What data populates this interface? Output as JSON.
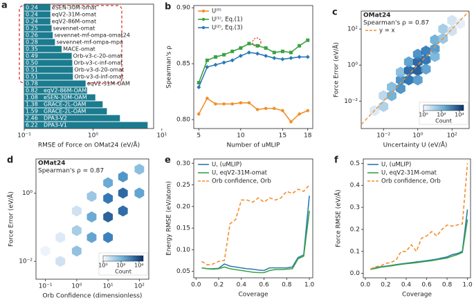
{
  "chart_data": [
    {
      "type": "barh",
      "panel_label": "a",
      "xlabel": "RMSE of Force on OMat24 (eV/Å)",
      "color": "#1b7b8f",
      "xscale": "log",
      "categories": [
        "eSEN-30M-omat",
        "eqV2-31M-omat",
        "eqV2-86M-omat",
        "sevennet-omat",
        "sevennet-mf-ompa-omat24",
        "sevennet-mf-ompa-mpa",
        "MACE-omat",
        "Orb-v3-c-20-omat",
        "Orb-v3-c-inf-omat",
        "Orb-v3-d-20-omat",
        "Orb-v3-d-inf-omat",
        "eqV2-31M-OAM",
        "eqV2-86M-OAM",
        "eSEN-30M-OAM",
        "GRACE-2L-OAM",
        "GRACE-2L-OAM",
        "DPA3-V2",
        "DPA3-V1"
      ],
      "values": [
        0.24,
        0.24,
        0.24,
        0.25,
        0.26,
        0.28,
        0.35,
        0.49,
        0.5,
        0.51,
        0.51,
        0.78,
        0.82,
        1.08,
        1.38,
        1.59,
        2.46,
        6.22
      ],
      "value_labels": [
        "0.24",
        "0.24",
        "0.24",
        "0.25",
        "0.26",
        "0.28",
        "0.35",
        "0.49",
        "0.50",
        "0.51",
        "0.51",
        "0.78",
        "0.82",
        "1.08",
        "1.38",
        "1.59",
        "2.46",
        "6.22"
      ],
      "xlim": [
        0.1,
        7.6
      ],
      "xticks": [
        {
          "value": 0.1,
          "label": "10⁻¹"
        },
        {
          "value": 1,
          "label": "10⁰"
        },
        {
          "value": 10,
          "label": "10¹"
        }
      ]
    },
    {
      "type": "line",
      "panel_label": "b",
      "xlabel": "Number of uMLIP",
      "ylabel": "Spearman's ρ",
      "legend": "upper left",
      "x": [
        5,
        6,
        7,
        8,
        9,
        10,
        11,
        12,
        13,
        14,
        15,
        16,
        17,
        18
      ],
      "series": [
        {
          "name": "U⁽⁰⁾",
          "color": "#f28e2b",
          "marker": "circle",
          "values": [
            0.805,
            0.819,
            0.814,
            0.814,
            0.814,
            0.815,
            0.815,
            0.809,
            0.81,
            0.81,
            0.808,
            0.798,
            0.805,
            0.808
          ]
        },
        {
          "name": "U⁽¹⁾, Eq.(1)",
          "color": "#3aa241",
          "marker": "square",
          "values": [
            0.833,
            0.853,
            0.856,
            0.858,
            0.861,
            0.864,
            0.868,
            0.866,
            0.864,
            0.86,
            0.861,
            0.86,
            0.866,
            0.871
          ]
        },
        {
          "name": "U⁽²⁾, Eq.(3)",
          "color": "#2a78b5",
          "marker": "diamond",
          "values": [
            0.829,
            0.847,
            0.849,
            0.851,
            0.853,
            0.857,
            0.86,
            0.859,
            0.857,
            0.855,
            0.854,
            0.855,
            0.856,
            0.856
          ]
        }
      ],
      "xlim": [
        4.4,
        18.6
      ],
      "xticks": [
        5,
        10,
        15,
        18
      ],
      "ylim": [
        0.792,
        0.902
      ],
      "yticks": [
        {
          "value": 0.8,
          "label": "0.80"
        },
        0.85,
        {
          "value": 0.9,
          "label": "0.90"
        }
      ]
    },
    {
      "type": "hexbin",
      "panel_label": "c",
      "xlabel": "Uncertainty U (eV/Å)",
      "ylabel": "Force Error (eV/Å)",
      "xscale": "log",
      "yscale": "log",
      "annotations": [
        "OMat24",
        "Spearman's ρ = 0.87"
      ],
      "legend": "upper left",
      "reference_line": {
        "name": "y = x",
        "color": "#f28e2b"
      },
      "x": [
        0.003,
        0.01,
        0.01,
        0.03,
        0.03,
        0.1,
        0.1,
        0.1,
        0.3,
        0.3,
        0.3,
        1,
        1,
        1,
        1,
        3,
        3,
        3,
        10,
        10,
        10,
        30,
        30,
        100,
        100,
        300
      ],
      "y": [
        0.003,
        0.005,
        0.02,
        0.02,
        0.06,
        0.05,
        0.15,
        0.4,
        0.15,
        0.5,
        1.5,
        0.5,
        1.5,
        4,
        0.15,
        2,
        6,
        0.6,
        8,
        25,
        3,
        30,
        100,
        80,
        300,
        200
      ],
      "counts": [
        5,
        30,
        20,
        200,
        100,
        800,
        900,
        100,
        3000,
        5000,
        400,
        8000,
        6000,
        900,
        500,
        3000,
        2000,
        400,
        600,
        200,
        150,
        60,
        40,
        10,
        8,
        3
      ],
      "xlim": [
        0.0005,
        1000
      ],
      "xticks": [
        {
          "value": 0.01,
          "label": "10⁻²"
        },
        {
          "value": 1,
          "label": "10⁰"
        },
        {
          "value": 100,
          "label": "10²"
        }
      ],
      "ylim": [
        0.0003,
        1000
      ],
      "yticks": [
        {
          "value": 0.01,
          "label": "10⁻²"
        },
        {
          "value": 1,
          "label": "10⁰"
        },
        {
          "value": 100,
          "label": "10²"
        }
      ],
      "colorbar": {
        "label": "Count",
        "lim": [
          1,
          30000
        ],
        "ticks": [
          {
            "value": 1,
            "label": "10⁰"
          },
          {
            "value": 100,
            "label": "10²"
          },
          {
            "value": 10000,
            "label": "10⁴"
          }
        ]
      }
    },
    {
      "type": "hexbin",
      "panel_label": "d",
      "xlabel": "Orb Confidence (dimensionless)",
      "ylabel": "Force Error (eV/Å)",
      "xscale": "log",
      "yscale": "log",
      "annotations": [
        "OMat24",
        "Spearman's ρ = 0.87"
      ],
      "x": [
        0.1,
        0.3,
        0.3,
        1,
        1,
        1,
        3,
        3,
        3,
        10,
        10,
        10,
        10,
        30,
        30,
        30,
        100,
        100
      ],
      "y": [
        0.02,
        0.01,
        0.05,
        0.02,
        0.08,
        0.3,
        0.05,
        0.2,
        0.8,
        0.05,
        0.2,
        0.7,
        2,
        0.3,
        1,
        3,
        1,
        5
      ],
      "counts": [
        2,
        10,
        5,
        80,
        40,
        10,
        400,
        300,
        60,
        2000,
        8000,
        3000,
        300,
        5000,
        6000,
        800,
        400,
        100
      ],
      "xlim": [
        0.05,
        200
      ],
      "xticks": [
        {
          "value": 0.1,
          "label": "10⁻¹"
        },
        {
          "value": 1,
          "label": "10⁰"
        },
        {
          "value": 10,
          "label": "10¹"
        },
        {
          "value": 100,
          "label": "10²"
        }
      ],
      "ylim": [
        0.003,
        10
      ],
      "yticks": [
        {
          "value": 0.01,
          "label": "10⁻²"
        },
        {
          "value": 1,
          "label": "10⁰"
        }
      ],
      "colorbar": {
        "label": "Count",
        "lim": [
          1,
          30000
        ],
        "ticks": [
          {
            "value": 1,
            "label": "10⁰"
          },
          {
            "value": 100,
            "label": "10²"
          },
          {
            "value": 10000,
            "label": "10⁴"
          }
        ]
      }
    },
    {
      "type": "line",
      "panel_label": "e",
      "xlabel": "Coverage",
      "ylabel": "Energy RMSE (eV/atom)",
      "legend": "upper left",
      "x": [
        0.05,
        0.1,
        0.15,
        0.2,
        0.25,
        0.3,
        0.35,
        0.4,
        0.45,
        0.5,
        0.55,
        0.6,
        0.65,
        0.7,
        0.75,
        0.8,
        0.85,
        0.9,
        0.95,
        1.0
      ],
      "series": [
        {
          "name": "U, (uMLIP)",
          "color": "#2a78b5",
          "values": [
            0.058,
            0.056,
            0.056,
            0.057,
            0.067,
            0.062,
            0.06,
            0.058,
            0.056,
            0.055,
            0.053,
            0.052,
            0.058,
            0.058,
            0.058,
            0.058,
            0.06,
            0.082,
            0.088,
            0.225
          ]
        },
        {
          "name": "U, eqV2-31M-omat",
          "color": "#3aa241",
          "values": [
            0.058,
            0.056,
            0.055,
            0.056,
            0.06,
            0.056,
            0.054,
            0.052,
            0.05,
            0.048,
            0.047,
            0.047,
            0.052,
            0.054,
            0.054,
            0.055,
            0.056,
            0.079,
            0.085,
            0.19
          ]
        },
        {
          "name": "Orb confidence, Orb",
          "color": "#f28e2b",
          "linestyle": "dashed",
          "values": [
            0.073,
            0.065,
            0.067,
            0.073,
            0.075,
            0.16,
            0.17,
            0.215,
            0.215,
            0.21,
            0.22,
            0.21,
            0.22,
            0.215,
            0.22,
            0.235,
            0.23,
            0.24,
            0.235,
            0.25
          ]
        }
      ],
      "xlim": [
        -0.02,
        1.03
      ],
      "xticks": [
        {
          "value": 0,
          "label": "0.0"
        },
        0.2,
        0.4,
        0.6,
        0.8,
        {
          "value": 1,
          "label": "1.0"
        }
      ],
      "ylim": [
        0.035,
        0.31
      ],
      "yticks": [
        0.05,
        {
          "value": 0.1,
          "label": "0.10"
        },
        0.15,
        {
          "value": 0.2,
          "label": "0.20"
        },
        0.25,
        {
          "value": 0.3,
          "label": "0.30"
        }
      ]
    },
    {
      "type": "line",
      "panel_label": "f",
      "xlabel": "Coverage",
      "ylabel": "Force RMSE (eV/Å)",
      "legend": "upper left",
      "x": [
        0.05,
        0.1,
        0.15,
        0.2,
        0.25,
        0.3,
        0.35,
        0.4,
        0.45,
        0.5,
        0.55,
        0.6,
        0.65,
        0.7,
        0.75,
        0.8,
        0.85,
        0.9,
        0.95,
        1.0
      ],
      "series": [
        {
          "name": "U, (uMLIP)",
          "color": "#2a78b5",
          "values": [
            0.02,
            0.025,
            0.03,
            0.033,
            0.036,
            0.04,
            0.043,
            0.046,
            0.049,
            0.052,
            0.055,
            0.058,
            0.061,
            0.065,
            0.07,
            0.075,
            0.085,
            0.09,
            0.1,
            0.29
          ]
        },
        {
          "name": "U, eqV2-31M-omat",
          "color": "#3aa241",
          "values": [
            0.018,
            0.023,
            0.028,
            0.031,
            0.034,
            0.038,
            0.041,
            0.044,
            0.046,
            0.049,
            0.052,
            0.055,
            0.058,
            0.062,
            0.066,
            0.07,
            0.078,
            0.085,
            0.095,
            0.245
          ]
        },
        {
          "name": "Orb confidence, Orb",
          "color": "#f28e2b",
          "linestyle": "dashed",
          "values": [
            0.02,
            0.03,
            0.035,
            0.045,
            0.05,
            0.06,
            0.1,
            0.1,
            0.13,
            0.1,
            0.16,
            0.17,
            0.19,
            0.17,
            0.2,
            0.22,
            0.215,
            0.22,
            0.225,
            0.5
          ]
        }
      ],
      "xlim": [
        -0.02,
        1.03
      ],
      "xticks": [
        {
          "value": 0,
          "label": "0.0"
        },
        0.2,
        0.4,
        0.6,
        0.8,
        {
          "value": 1,
          "label": "1.0"
        }
      ],
      "ylim": [
        -0.02,
        0.52
      ],
      "yticks": [
        {
          "value": 0,
          "label": "0.0"
        },
        0.1,
        0.2,
        0.3,
        0.4,
        0.5
      ]
    }
  ]
}
